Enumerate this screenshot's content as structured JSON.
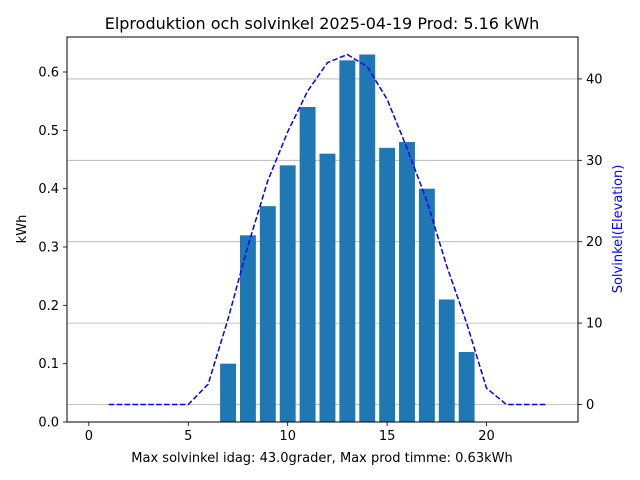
{
  "chart_data": {
    "type": "bar",
    "title": "Elproduktion och solvinkel 2025-04-19 Prod: 5.16 kWh",
    "xlabel": "Max solvinkel idag: 43.0grader, Max prod timme: 0.63kWh",
    "ylabel": "kWh",
    "y2label": "Solvinkel(Elevation)",
    "xlim": [
      -1.1,
      24.6
    ],
    "ylim": [
      0,
      0.66
    ],
    "y2lim": [
      -2.15,
      45.15
    ],
    "xticks": [
      0,
      5,
      10,
      15,
      20
    ],
    "yticks": [
      0.0,
      0.1,
      0.2,
      0.3,
      0.4,
      0.5,
      0.6
    ],
    "y2ticks": [
      0,
      10,
      20,
      30,
      40
    ],
    "grid": "right-axis horizontal lines",
    "bar_color": "#1f77b4",
    "line_color": "#0000ff",
    "bars": {
      "x": [
        7,
        8,
        9,
        10,
        11,
        12,
        13,
        14,
        15,
        16,
        17,
        18,
        19
      ],
      "values": [
        0.1,
        0.32,
        0.37,
        0.44,
        0.54,
        0.46,
        0.62,
        0.63,
        0.47,
        0.48,
        0.4,
        0.21,
        0.12
      ]
    },
    "line": {
      "x": [
        1,
        2,
        3,
        4,
        5,
        6,
        7,
        8,
        9,
        10,
        11,
        12,
        13,
        14,
        15,
        16,
        17,
        18,
        19,
        20,
        21,
        22,
        23
      ],
      "values": [
        0,
        0,
        0,
        0,
        0,
        2.5,
        10.5,
        19.5,
        27.5,
        33.5,
        38.5,
        42,
        43,
        41.5,
        37.5,
        31.5,
        25,
        17,
        10,
        2,
        0,
        0,
        0
      ]
    }
  }
}
